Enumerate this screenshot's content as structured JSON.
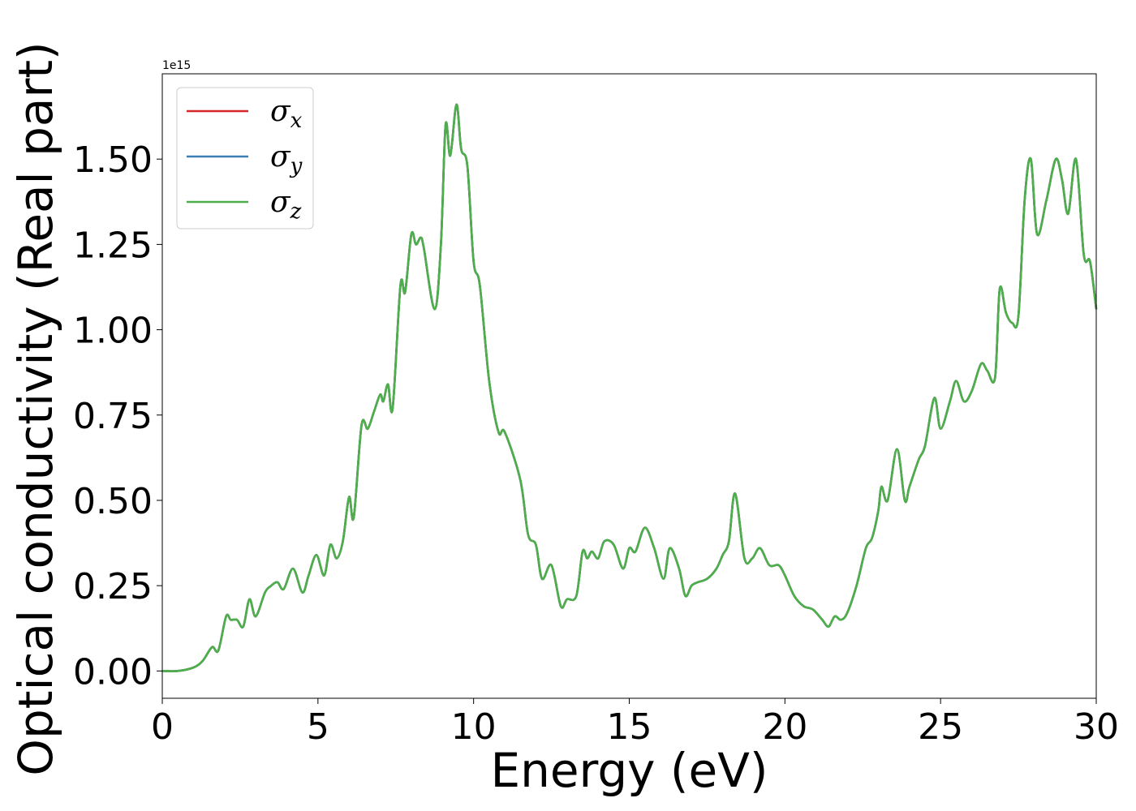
{
  "chart_data": {
    "type": "line",
    "title": "",
    "xlabel": "Energy (eV)",
    "ylabel": "Optical conductivity (Real part)",
    "y_offset_text": "1e15",
    "xlim": [
      0,
      30
    ],
    "ylim": [
      -0.08,
      1.75
    ],
    "xticks": [
      0,
      5,
      10,
      15,
      20,
      25,
      30
    ],
    "xtick_labels": [
      "0",
      "5",
      "10",
      "15",
      "20",
      "25",
      "30"
    ],
    "yticks": [
      0.0,
      0.25,
      0.5,
      0.75,
      1.0,
      1.25,
      1.5
    ],
    "ytick_labels": [
      "0.00",
      "0.25",
      "0.50",
      "0.75",
      "1.00",
      "1.25",
      "1.50"
    ],
    "grid": false,
    "legend": {
      "placement": "upper-left",
      "entries": [
        {
          "label_base": "σ",
          "label_sub": "x",
          "color": "#d62728"
        },
        {
          "label_base": "σ",
          "label_sub": "y",
          "color": "#3a7fb5"
        },
        {
          "label_base": "σ",
          "label_sub": "z",
          "color": "#4daf4a"
        }
      ]
    },
    "series": [
      {
        "color": "#d62728"
      },
      {
        "color": "#3a7fb5"
      },
      {
        "color": "#4daf4a"
      }
    ],
    "x": [
      0,
      0.5,
      1.0,
      1.3,
      1.6,
      1.8,
      2.05,
      2.2,
      2.4,
      2.6,
      2.8,
      3.0,
      3.3,
      3.5,
      3.7,
      3.9,
      4.2,
      4.5,
      4.7,
      4.95,
      5.2,
      5.4,
      5.6,
      5.8,
      6.0,
      6.15,
      6.4,
      6.6,
      6.8,
      7.0,
      7.1,
      7.25,
      7.4,
      7.65,
      7.8,
      8.0,
      8.15,
      8.3,
      8.4,
      8.75,
      8.95,
      9.1,
      9.25,
      9.45,
      9.6,
      9.8,
      10.0,
      10.2,
      10.5,
      10.8,
      11.0,
      11.5,
      11.75,
      12.0,
      12.2,
      12.5,
      12.8,
      13.0,
      13.3,
      13.5,
      13.65,
      13.8,
      14.0,
      14.2,
      14.5,
      14.8,
      15.0,
      15.2,
      15.5,
      15.8,
      16.1,
      16.3,
      16.6,
      16.8,
      17.0,
      17.2,
      17.5,
      17.8,
      18.0,
      18.2,
      18.4,
      18.7,
      18.95,
      19.2,
      19.5,
      19.8,
      20.0,
      20.3,
      20.6,
      20.9,
      21.2,
      21.4,
      21.6,
      21.8,
      22.0,
      22.3,
      22.6,
      22.8,
      23.0,
      23.1,
      23.3,
      23.6,
      23.85,
      24.0,
      24.3,
      24.5,
      24.8,
      25.0,
      25.3,
      25.5,
      25.75,
      26.0,
      26.3,
      26.5,
      26.75,
      26.9,
      27.1,
      27.3,
      27.5,
      27.7,
      27.9,
      28.1,
      28.4,
      28.7,
      28.9,
      29.1,
      29.35,
      29.6,
      29.8,
      30.0
    ],
    "y": [
      0.0,
      0.0,
      0.01,
      0.03,
      0.07,
      0.06,
      0.16,
      0.15,
      0.15,
      0.13,
      0.21,
      0.16,
      0.23,
      0.25,
      0.26,
      0.24,
      0.3,
      0.23,
      0.28,
      0.34,
      0.28,
      0.37,
      0.33,
      0.38,
      0.51,
      0.45,
      0.72,
      0.71,
      0.76,
      0.81,
      0.79,
      0.84,
      0.77,
      1.13,
      1.11,
      1.28,
      1.25,
      1.27,
      1.24,
      1.06,
      1.25,
      1.6,
      1.51,
      1.66,
      1.53,
      1.48,
      1.2,
      1.13,
      0.85,
      0.7,
      0.7,
      0.56,
      0.4,
      0.37,
      0.27,
      0.31,
      0.19,
      0.21,
      0.22,
      0.35,
      0.33,
      0.35,
      0.33,
      0.38,
      0.37,
      0.3,
      0.36,
      0.35,
      0.42,
      0.36,
      0.27,
      0.36,
      0.3,
      0.22,
      0.25,
      0.26,
      0.27,
      0.3,
      0.34,
      0.38,
      0.52,
      0.33,
      0.33,
      0.36,
      0.31,
      0.31,
      0.28,
      0.22,
      0.19,
      0.18,
      0.15,
      0.13,
      0.16,
      0.15,
      0.17,
      0.25,
      0.36,
      0.39,
      0.47,
      0.54,
      0.5,
      0.65,
      0.5,
      0.54,
      0.62,
      0.66,
      0.8,
      0.71,
      0.79,
      0.85,
      0.79,
      0.82,
      0.9,
      0.88,
      0.86,
      1.12,
      1.05,
      1.02,
      1.04,
      1.38,
      1.5,
      1.28,
      1.38,
      1.5,
      1.44,
      1.34,
      1.5,
      1.22,
      1.2,
      1.06
    ]
  }
}
